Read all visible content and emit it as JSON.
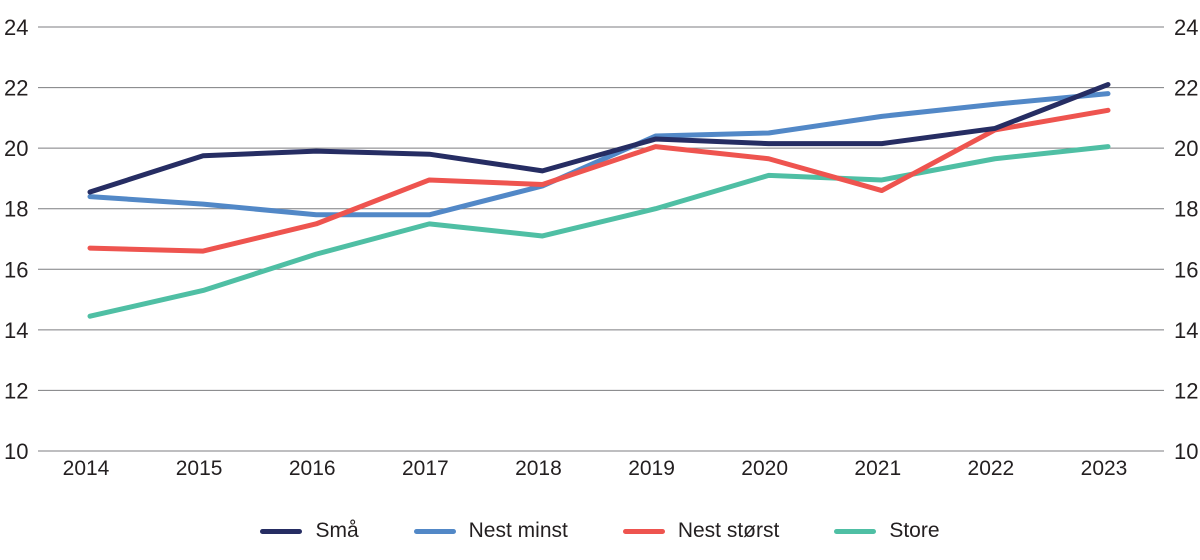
{
  "chart_data": {
    "type": "line",
    "categories": [
      "2014",
      "2015",
      "2016",
      "2017",
      "2018",
      "2019",
      "2020",
      "2021",
      "2022",
      "2023"
    ],
    "series": [
      {
        "name": "Små",
        "color": "#262d63",
        "values": [
          18.55,
          19.75,
          19.9,
          19.8,
          19.25,
          20.3,
          20.15,
          20.15,
          20.65,
          22.1
        ]
      },
      {
        "name": "Nest minst",
        "color": "#5288c7",
        "values": [
          18.4,
          18.15,
          17.8,
          17.8,
          18.75,
          20.4,
          20.5,
          21.05,
          21.45,
          21.8
        ]
      },
      {
        "name": "Nest størst",
        "color": "#ee544f",
        "values": [
          16.7,
          16.6,
          17.5,
          18.95,
          18.8,
          20.05,
          19.65,
          18.6,
          20.6,
          21.25
        ]
      },
      {
        "name": "Store",
        "color": "#4fbfa4",
        "values": [
          14.45,
          15.3,
          16.5,
          17.5,
          17.1,
          18.0,
          19.1,
          18.95,
          19.65,
          20.05
        ]
      }
    ],
    "title": "",
    "xlabel": "",
    "ylabel": "",
    "ylim": [
      10,
      24
    ],
    "yticks": [
      24,
      22,
      20,
      18,
      16,
      14,
      12,
      10
    ],
    "ytick_sides": [
      "left",
      "right"
    ],
    "grid": true,
    "legend_position": "bottom",
    "z_order": [
      "Nest minst",
      "Store",
      "Nest størst",
      "Små"
    ]
  },
  "colors": {
    "text": "#231f20",
    "gridline": "#7d7e81",
    "background": "#ffffff"
  }
}
